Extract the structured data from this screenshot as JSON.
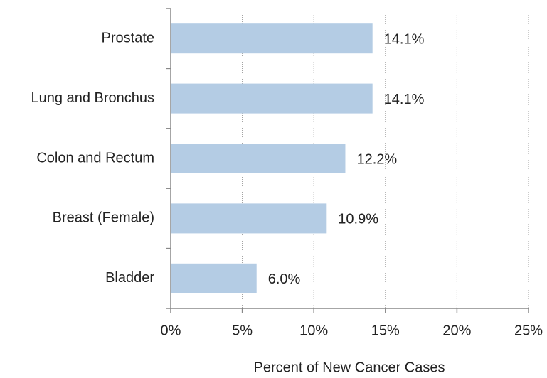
{
  "chart_data": {
    "type": "bar",
    "orientation": "horizontal",
    "x_label": "Percent of New Cancer Cases",
    "categories": [
      "Prostate",
      "Lung and Bronchus",
      "Colon and Rectum",
      "Breast (Female)",
      "Bladder"
    ],
    "values": [
      14.1,
      14.1,
      12.2,
      10.9,
      6.0
    ],
    "value_labels": [
      "14.1%",
      "14.1%",
      "12.2%",
      "10.9%",
      "6.0%"
    ],
    "color": "#b4cce4",
    "xlim": [
      0,
      25
    ],
    "xticks": [
      {
        "value": 0,
        "label": "0%"
      },
      {
        "value": 5,
        "label": "5%"
      },
      {
        "value": 10,
        "label": "10%"
      },
      {
        "value": 15,
        "label": "15%"
      },
      {
        "value": 20,
        "label": "20%"
      },
      {
        "value": 25,
        "label": "25%"
      }
    ],
    "grid": true
  }
}
